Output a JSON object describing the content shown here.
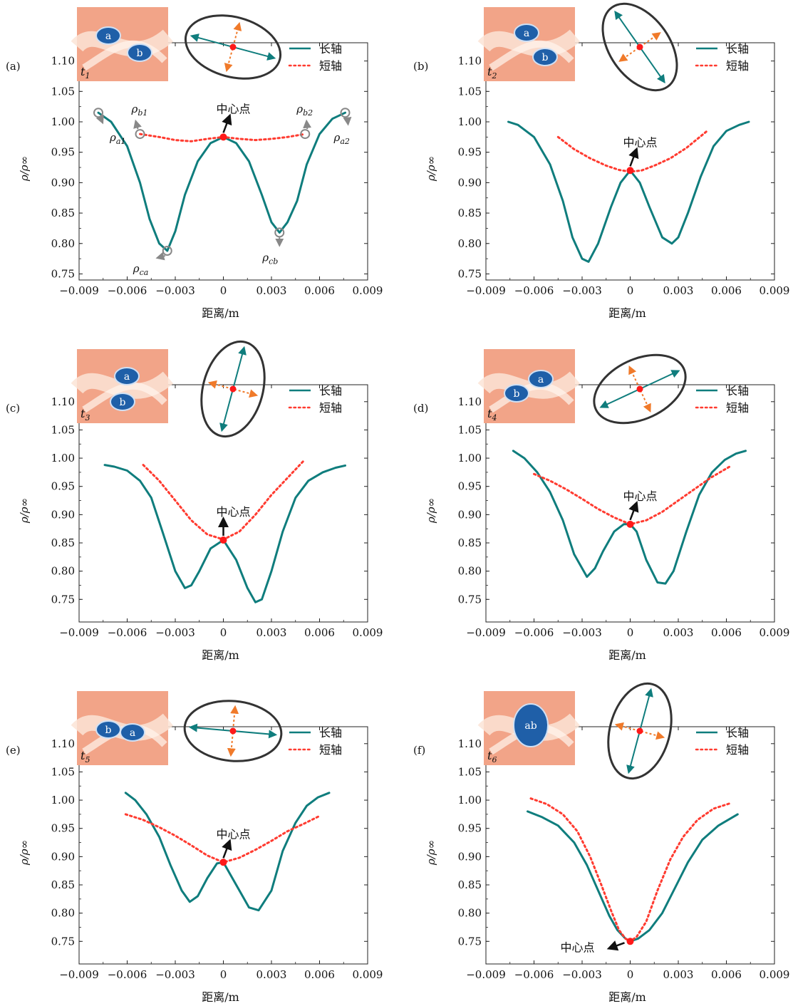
{
  "colors": {
    "major": "#0f7d7d",
    "minor": "#ff3b30",
    "center": "#ff1a1a",
    "orange_arrow": "#f07a2a",
    "gray_marker": "#888888",
    "inset_bg": "#f2a488",
    "inset_light": "#fbe4d6",
    "vortex": "#1f5fa8"
  },
  "legend": {
    "major": "长轴",
    "minor": "短轴"
  },
  "chart_data": [
    {
      "type": "line",
      "panel": "(a)",
      "time_label": "t",
      "time_sub": "1",
      "blobs": [
        "a",
        "b"
      ],
      "xlabel": "距离/m",
      "ylabel": "ρ/ρ∞",
      "xlim": [
        -0.009,
        0.009
      ],
      "ylim": [
        0.74,
        1.13
      ],
      "xticks": [
        "−0.009",
        "−0.006",
        "−0.003",
        "0",
        "0.003",
        "0.006",
        "0.009"
      ],
      "yticks": [
        "0.75",
        "0.80",
        "0.85",
        "0.90",
        "0.95",
        "1.00",
        "1.05",
        "1.10"
      ],
      "center_label": "中心点",
      "series": [
        {
          "name": "长轴",
          "x": [
            -0.0078,
            -0.007,
            -0.006,
            -0.0052,
            -0.0046,
            -0.004,
            -0.0035,
            -0.003,
            -0.0024,
            -0.0016,
            -0.0008,
            0,
            0.0008,
            0.0016,
            0.0024,
            0.003,
            0.0035,
            0.004,
            0.0046,
            0.0052,
            0.006,
            0.0068,
            0.0076
          ],
          "y": [
            1.015,
            1.0,
            0.96,
            0.9,
            0.84,
            0.8,
            0.788,
            0.82,
            0.88,
            0.935,
            0.965,
            0.975,
            0.965,
            0.935,
            0.88,
            0.835,
            0.818,
            0.835,
            0.87,
            0.93,
            0.98,
            1.005,
            1.015
          ]
        },
        {
          "name": "短轴",
          "x": [
            -0.0052,
            -0.004,
            -0.003,
            -0.002,
            -0.001,
            0,
            0.001,
            0.002,
            0.003,
            0.004,
            0.0051
          ],
          "y": [
            0.98,
            0.975,
            0.97,
            0.968,
            0.972,
            0.975,
            0.972,
            0.97,
            0.972,
            0.975,
            0.98
          ]
        }
      ],
      "annotations": [
        {
          "base": "ρ",
          "sub": "a1"
        },
        {
          "base": "ρ",
          "sub": "b1"
        },
        {
          "base": "ρ",
          "sub": "ca"
        },
        {
          "base": "ρ",
          "sub": "cb"
        },
        {
          "base": "ρ",
          "sub": "b2"
        },
        {
          "base": "ρ",
          "sub": "a2"
        }
      ]
    },
    {
      "type": "line",
      "panel": "(b)",
      "time_label": "t",
      "time_sub": "2",
      "blobs": [
        "a",
        "b"
      ],
      "xlabel": "距离/m",
      "ylabel": "ρ/ρ∞",
      "xlim": [
        -0.009,
        0.009
      ],
      "ylim": [
        0.74,
        1.13
      ],
      "xticks": [
        "−0.009",
        "−0.006",
        "−0.003",
        "0",
        "0.003",
        "0.006",
        "0.009"
      ],
      "yticks": [
        "0.75",
        "0.80",
        "0.85",
        "0.90",
        "0.95",
        "1.00",
        "1.05",
        "1.10"
      ],
      "center_label": "中心点",
      "series": [
        {
          "name": "长轴",
          "x": [
            -0.0076,
            -0.007,
            -0.006,
            -0.005,
            -0.0042,
            -0.0036,
            -0.003,
            -0.0026,
            -0.002,
            -0.0012,
            -0.0006,
            0,
            0.0006,
            0.0012,
            0.002,
            0.0026,
            0.003,
            0.0036,
            0.0044,
            0.0052,
            0.006,
            0.0068,
            0.0074
          ],
          "y": [
            1.0,
            0.995,
            0.975,
            0.93,
            0.87,
            0.81,
            0.775,
            0.77,
            0.8,
            0.86,
            0.9,
            0.92,
            0.9,
            0.86,
            0.81,
            0.8,
            0.81,
            0.85,
            0.91,
            0.96,
            0.985,
            0.995,
            1.0
          ]
        },
        {
          "name": "短轴",
          "x": [
            -0.0045,
            -0.0035,
            -0.0025,
            -0.0015,
            -0.0007,
            0,
            0.0007,
            0.0015,
            0.0025,
            0.0035,
            0.0048
          ],
          "y": [
            0.975,
            0.955,
            0.94,
            0.928,
            0.921,
            0.918,
            0.92,
            0.928,
            0.94,
            0.957,
            0.985
          ]
        }
      ]
    },
    {
      "type": "line",
      "panel": "(c)",
      "time_label": "t",
      "time_sub": "3",
      "blobs": [
        "a",
        "b"
      ],
      "xlabel": "距离/m",
      "ylabel": "ρ/ρ∞",
      "xlim": [
        -0.009,
        0.009
      ],
      "ylim": [
        0.71,
        1.13
      ],
      "xticks": [
        "−0.009",
        "−0.006",
        "−0.003",
        "0",
        "0.003",
        "0.006",
        "0.009"
      ],
      "yticks": [
        "0.75",
        "0.80",
        "0.85",
        "0.90",
        "0.95",
        "1.00",
        "1.05",
        "1.10"
      ],
      "center_label": "中心点",
      "series": [
        {
          "name": "长轴",
          "x": [
            -0.0074,
            -0.0068,
            -0.006,
            -0.0052,
            -0.0045,
            -0.0038,
            -0.003,
            -0.0024,
            -0.002,
            -0.0015,
            -0.0008,
            0,
            0.0008,
            0.0015,
            0.002,
            0.0024,
            0.003,
            0.0037,
            0.0045,
            0.0053,
            0.0062,
            0.007,
            0.0076
          ],
          "y": [
            0.988,
            0.985,
            0.978,
            0.96,
            0.93,
            0.87,
            0.8,
            0.77,
            0.775,
            0.8,
            0.84,
            0.855,
            0.82,
            0.77,
            0.745,
            0.75,
            0.8,
            0.87,
            0.93,
            0.96,
            0.975,
            0.983,
            0.987
          ]
        },
        {
          "name": "短轴",
          "x": [
            -0.005,
            -0.004,
            -0.003,
            -0.002,
            -0.001,
            0,
            0.001,
            0.002,
            0.003,
            0.004,
            0.005
          ],
          "y": [
            0.988,
            0.96,
            0.925,
            0.89,
            0.865,
            0.856,
            0.87,
            0.9,
            0.935,
            0.965,
            0.995
          ]
        }
      ]
    },
    {
      "type": "line",
      "panel": "(d)",
      "time_label": "t",
      "time_sub": "4",
      "blobs": [
        "b",
        "a"
      ],
      "xlabel": "距离/m",
      "ylabel": "ρ/ρ∞",
      "xlim": [
        -0.009,
        0.009
      ],
      "ylim": [
        0.71,
        1.13
      ],
      "xticks": [
        "−0.009",
        "−0.006",
        "−0.003",
        "0",
        "0.003",
        "0.006",
        "0.009"
      ],
      "yticks": [
        "0.75",
        "0.80",
        "0.85",
        "0.90",
        "0.95",
        "1.00",
        "1.05",
        "1.10"
      ],
      "center_label": "中心点",
      "series": [
        {
          "name": "长轴",
          "x": [
            -0.0073,
            -0.0066,
            -0.0058,
            -0.005,
            -0.0042,
            -0.0035,
            -0.0027,
            -0.0022,
            -0.0017,
            -0.001,
            -0.0004,
            0,
            0.0004,
            0.001,
            0.0017,
            0.0022,
            0.0027,
            0.0035,
            0.0043,
            0.0051,
            0.0059,
            0.0066,
            0.0072
          ],
          "y": [
            1.013,
            1.0,
            0.975,
            0.94,
            0.89,
            0.83,
            0.79,
            0.805,
            0.835,
            0.87,
            0.883,
            0.883,
            0.87,
            0.82,
            0.78,
            0.778,
            0.8,
            0.87,
            0.935,
            0.975,
            0.997,
            1.008,
            1.013
          ]
        },
        {
          "name": "短轴",
          "x": [
            -0.006,
            -0.005,
            -0.004,
            -0.003,
            -0.002,
            -0.001,
            0,
            0.001,
            0.002,
            0.003,
            0.004,
            0.005,
            0.0062
          ],
          "y": [
            0.972,
            0.96,
            0.945,
            0.928,
            0.91,
            0.895,
            0.883,
            0.89,
            0.905,
            0.925,
            0.945,
            0.965,
            0.985
          ]
        }
      ]
    },
    {
      "type": "line",
      "panel": "(e)",
      "time_label": "t",
      "time_sub": "5",
      "blobs": [
        "b",
        "a"
      ],
      "xlabel": "距离/m",
      "ylabel": "ρ/ρ∞",
      "xlim": [
        -0.009,
        0.009
      ],
      "ylim": [
        0.71,
        1.13
      ],
      "xticks": [
        "−0.009",
        "−0.006",
        "−0.003",
        "0",
        "0.003",
        "0.006",
        "0.009"
      ],
      "yticks": [
        "0.75",
        "0.80",
        "0.85",
        "0.90",
        "0.95",
        "1.00",
        "1.05",
        "1.10"
      ],
      "center_label": "中心点",
      "series": [
        {
          "name": "长轴",
          "x": [
            -0.0061,
            -0.0055,
            -0.0048,
            -0.004,
            -0.0033,
            -0.0026,
            -0.0021,
            -0.0016,
            -0.001,
            -0.0004,
            0,
            0.0004,
            0.001,
            0.0016,
            0.0022,
            0.003,
            0.0037,
            0.0045,
            0.0052,
            0.0059,
            0.0066
          ],
          "y": [
            1.013,
            1.0,
            0.975,
            0.935,
            0.885,
            0.84,
            0.82,
            0.83,
            0.862,
            0.888,
            0.89,
            0.87,
            0.84,
            0.81,
            0.805,
            0.84,
            0.91,
            0.96,
            0.99,
            1.005,
            1.013
          ]
        },
        {
          "name": "短轴",
          "x": [
            -0.0061,
            -0.005,
            -0.004,
            -0.003,
            -0.002,
            -0.001,
            0,
            0.001,
            0.002,
            0.003,
            0.004,
            0.005,
            0.006
          ],
          "y": [
            0.975,
            0.965,
            0.952,
            0.937,
            0.92,
            0.902,
            0.89,
            0.898,
            0.912,
            0.928,
            0.945,
            0.958,
            0.972
          ]
        }
      ]
    },
    {
      "type": "line",
      "panel": "(f)",
      "time_label": "t",
      "time_sub": "6",
      "blobs": [
        "ab"
      ],
      "xlabel": "距离/m",
      "ylabel": "ρ/ρ∞",
      "xlim": [
        -0.009,
        0.009
      ],
      "ylim": [
        0.71,
        1.13
      ],
      "xticks": [
        "−0.009",
        "−0.006",
        "−0.003",
        "0",
        "0.003",
        "0.006",
        "0.009"
      ],
      "yticks": [
        "0.75",
        "0.80",
        "0.85",
        "0.90",
        "0.95",
        "1.00",
        "1.05",
        "1.10"
      ],
      "center_label": "中心点",
      "series": [
        {
          "name": "长轴",
          "x": [
            -0.0064,
            -0.0055,
            -0.0045,
            -0.0035,
            -0.0027,
            -0.002,
            -0.0013,
            -0.0008,
            -0.0003,
            0,
            0.0005,
            0.0012,
            0.002,
            0.0028,
            0.0036,
            0.0045,
            0.0055,
            0.0067
          ],
          "y": [
            0.98,
            0.97,
            0.955,
            0.925,
            0.885,
            0.84,
            0.795,
            0.77,
            0.755,
            0.75,
            0.755,
            0.77,
            0.8,
            0.845,
            0.89,
            0.93,
            0.955,
            0.975
          ]
        },
        {
          "name": "短轴",
          "x": [
            -0.0062,
            -0.0052,
            -0.0042,
            -0.0033,
            -0.0025,
            -0.0018,
            -0.0012,
            -0.0007,
            -0.0003,
            0,
            0.0004,
            0.001,
            0.0017,
            0.0025,
            0.0033,
            0.0042,
            0.0052,
            0.0063
          ],
          "y": [
            1.003,
            0.993,
            0.975,
            0.945,
            0.9,
            0.85,
            0.805,
            0.77,
            0.755,
            0.75,
            0.758,
            0.785,
            0.84,
            0.895,
            0.935,
            0.965,
            0.985,
            0.995
          ]
        }
      ]
    }
  ]
}
